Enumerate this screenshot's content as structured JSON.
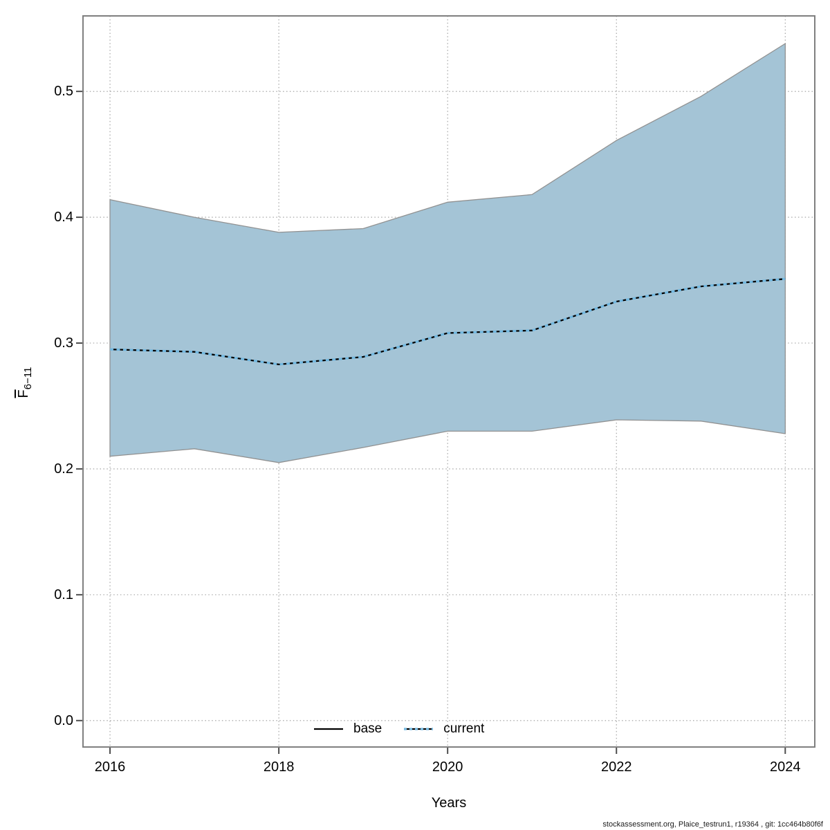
{
  "chart_data": {
    "type": "area",
    "title": "",
    "xlabel": "Years",
    "ylabel": {
      "main": "F",
      "overline": true,
      "sub": "6−11"
    },
    "x": [
      2016,
      2017,
      2018,
      2019,
      2020,
      2021,
      2022,
      2023,
      2024
    ],
    "series": [
      {
        "name": "base",
        "line_style": "solid",
        "color": "#000000",
        "values": [
          0.295,
          0.293,
          0.283,
          0.289,
          0.308,
          0.31,
          0.333,
          0.345,
          0.351
        ]
      },
      {
        "name": "current",
        "line_style": "dashed",
        "color": "#72b8e0",
        "values": [
          0.295,
          0.293,
          0.283,
          0.289,
          0.308,
          0.31,
          0.333,
          0.345,
          0.351
        ]
      }
    ],
    "band": {
      "belongs_to": "confidence interval",
      "upper": [
        0.414,
        0.4,
        0.388,
        0.391,
        0.412,
        0.418,
        0.461,
        0.496,
        0.538
      ],
      "lower": [
        0.21,
        0.216,
        0.205,
        0.217,
        0.23,
        0.23,
        0.239,
        0.238,
        0.228
      ],
      "fill": "#a4c4d6",
      "border": "#919191"
    },
    "xticks": [
      2016,
      2018,
      2020,
      2022,
      2024
    ],
    "yticks": [
      0.0,
      0.1,
      0.2,
      0.3,
      0.4,
      0.5
    ],
    "xlim": [
      2015.68,
      2024.35
    ],
    "ylim": [
      -0.021,
      0.56
    ],
    "grid": true,
    "legend_position": "bottom-center"
  },
  "legend": {
    "items": [
      {
        "label": "base"
      },
      {
        "label": "current"
      }
    ]
  },
  "footer": {
    "text": "stockassessment.org, Plaice_testrun1, r19364 , git: 1cc464b80f6f"
  },
  "colors": {
    "background": "#ffffff",
    "band_fill": "#a4c4d6",
    "band_border": "#919191",
    "grid": "#9a9a9a",
    "box_border": "#7f7f7f",
    "base_line": "#000000",
    "current_line": "#72b8e0",
    "tick": "#4d4d4d"
  }
}
